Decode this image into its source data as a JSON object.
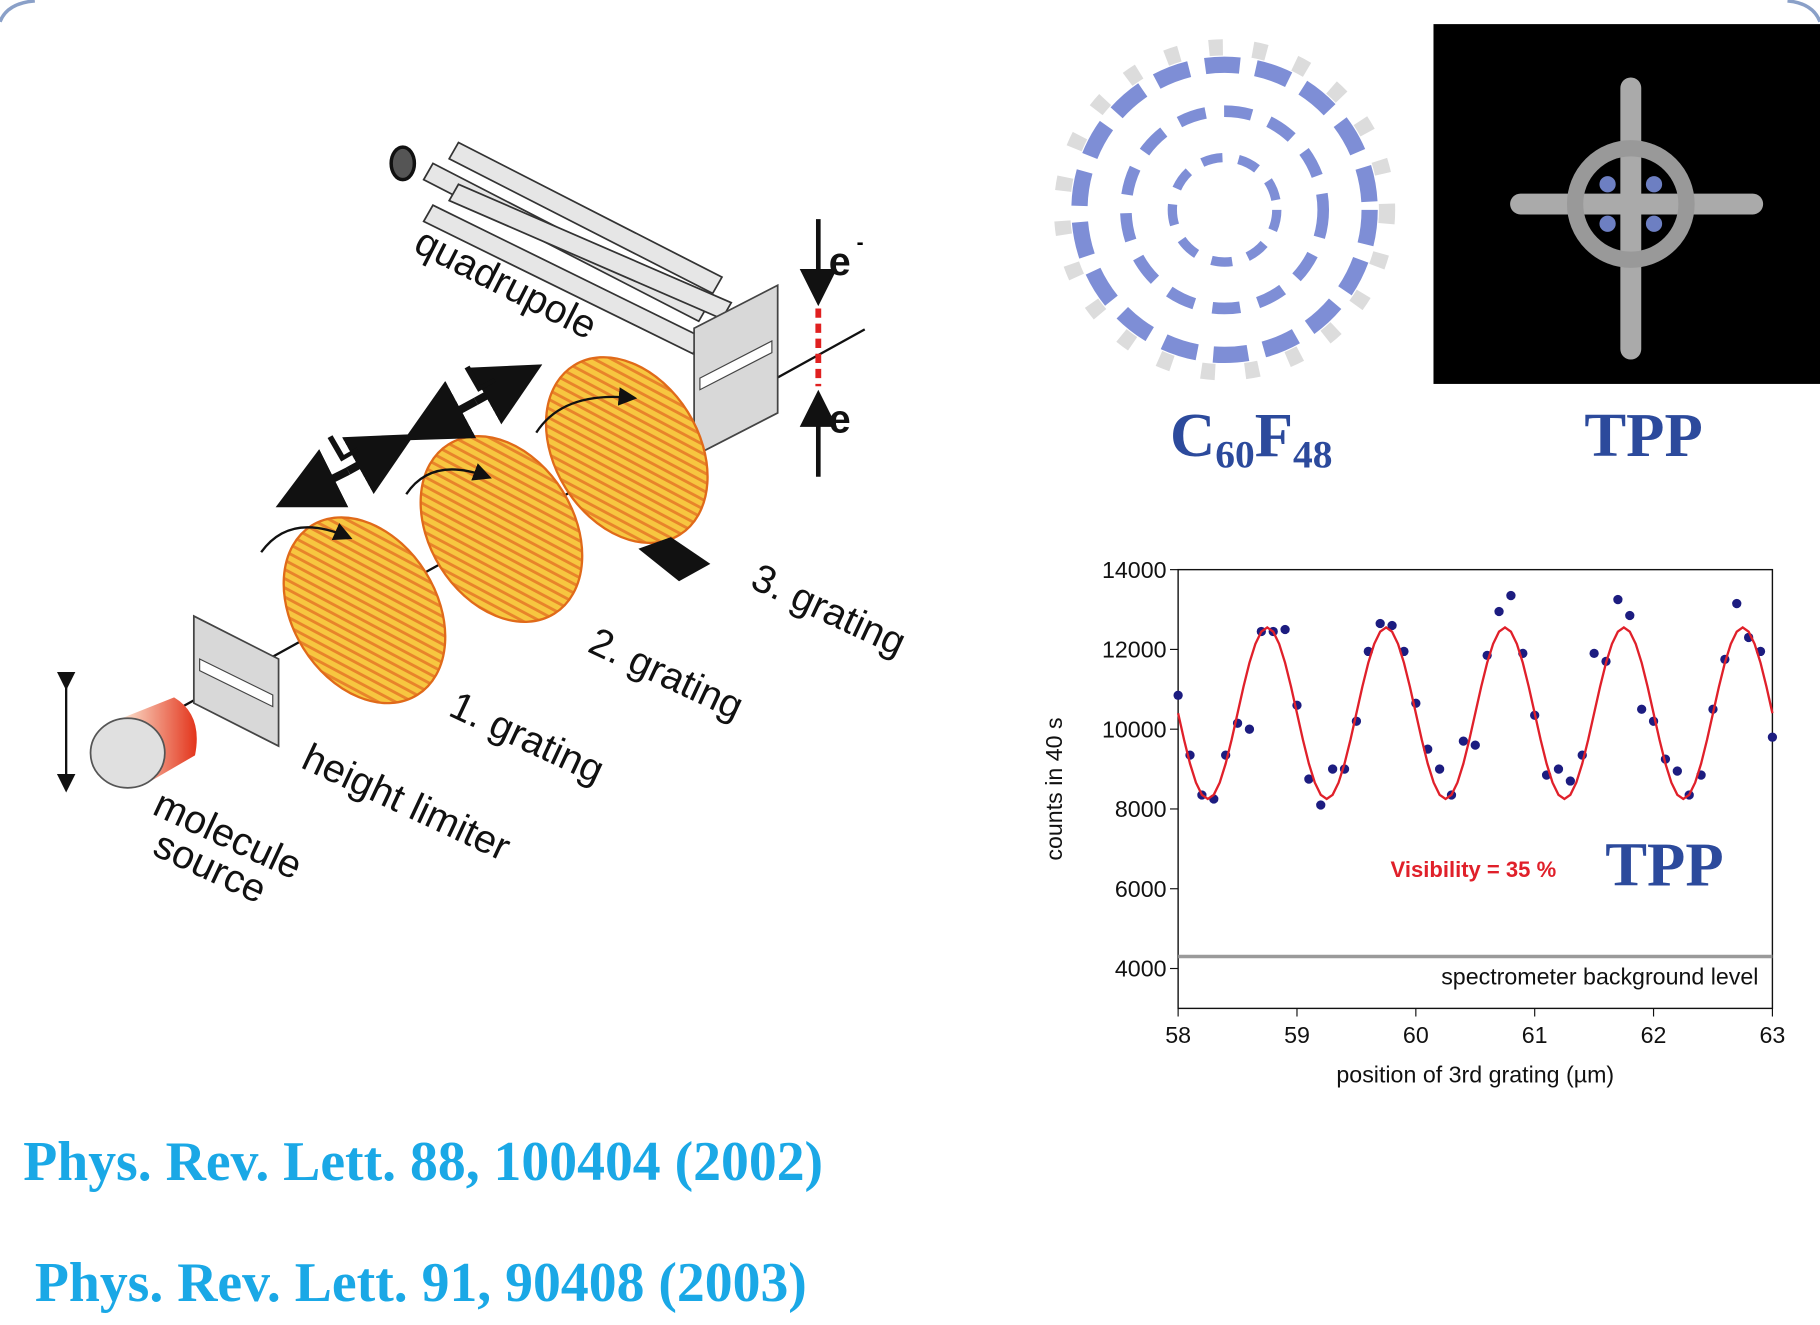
{
  "diagram": {
    "quadrupole": "quadrupole",
    "grating_3": "3. grating",
    "grating_2": "2. grating",
    "grating_1": "1. grating",
    "height_limiter": "height limiter",
    "source_line_1": "molecule",
    "source_line_2": "source",
    "distance_1": "L",
    "distance_2": "L",
    "electron_top": "e",
    "electron_bottom": "e",
    "electron_charge": "-"
  },
  "molecules": [
    {
      "label_parts": [
        "C",
        "60",
        "F",
        "48"
      ]
    },
    {
      "label": "TPP"
    }
  ],
  "chart_data": {
    "type": "scatter",
    "xlabel": "position of 3rd grating (µm)",
    "ylabel": "counts in 40 s",
    "xlim": [
      58,
      63
    ],
    "ylim": [
      3000,
      14000
    ],
    "xticks": [
      58,
      59,
      60,
      61,
      62,
      63
    ],
    "yticks": [
      4000,
      6000,
      8000,
      10000,
      12000,
      14000
    ],
    "series": [
      {
        "mode": "markers",
        "color": "#1c1c80",
        "x": [
          58,
          58.1,
          58.2,
          58.3,
          58.4,
          58.5,
          58.6,
          58.7,
          58.8,
          58.9,
          59,
          59.1,
          59.2,
          59.3,
          59.4,
          59.5,
          59.6,
          59.7,
          59.8,
          59.9,
          60,
          60.1,
          60.2,
          60.3,
          60.4,
          60.5,
          60.6,
          60.7,
          60.8,
          60.9,
          61,
          61.1,
          61.2,
          61.3,
          61.4,
          61.5,
          61.6,
          61.7,
          61.8,
          61.9,
          62,
          62.1,
          62.2,
          62.3,
          62.4,
          62.5,
          62.6,
          62.7,
          62.8,
          62.9,
          63
        ],
        "values": [
          10850,
          9350,
          8350,
          8250,
          9350,
          10150,
          10000,
          12450,
          12450,
          12500,
          10600,
          8750,
          8100,
          9000,
          9000,
          10200,
          11950,
          12650,
          12600,
          11950,
          10650,
          9500,
          9000,
          8350,
          9700,
          9600,
          11850,
          12950,
          13350,
          11900,
          10350,
          8850,
          9000,
          8700,
          9350,
          11900,
          11700,
          13250,
          12850,
          10500,
          10200,
          9250,
          8950,
          8350,
          8850,
          10500,
          11750,
          13150,
          12300,
          11950,
          9800
        ]
      },
      {
        "mode": "line",
        "color": "#e0202a",
        "x": [
          58,
          58.05,
          58.1,
          58.15,
          58.2,
          58.25,
          58.3,
          58.35,
          58.4,
          58.45,
          58.5,
          58.55,
          58.6,
          58.65,
          58.7,
          58.75,
          58.8,
          58.85,
          58.9,
          58.95,
          59,
          59.05,
          59.1,
          59.15,
          59.2,
          59.25,
          59.3,
          59.35,
          59.4,
          59.45,
          59.5,
          59.55,
          59.6,
          59.65,
          59.7,
          59.75,
          59.8,
          59.85,
          59.9,
          59.95,
          60,
          60.05,
          60.1,
          60.15,
          60.2,
          60.25,
          60.3,
          60.35,
          60.4,
          60.45,
          60.5,
          60.55,
          60.6,
          60.65,
          60.7,
          60.75,
          60.8,
          60.85,
          60.9,
          60.95,
          61,
          61.05,
          61.1,
          61.15,
          61.2,
          61.25,
          61.3,
          61.35,
          61.4,
          61.45,
          61.5,
          61.55,
          61.6,
          61.65,
          61.7,
          61.75,
          61.8,
          61.85,
          61.9,
          61.95,
          62,
          62.05,
          62.1,
          62.15,
          62.2,
          62.25,
          62.3,
          62.35,
          62.4,
          62.45,
          62.5,
          62.55,
          62.6,
          62.65,
          62.7,
          62.75,
          62.8,
          62.85,
          62.9,
          62.95,
          63
        ],
        "values": [
          10400,
          9736,
          9136,
          8661,
          8355,
          8250,
          8355,
          8661,
          9136,
          9736,
          10400,
          11064,
          11664,
          12139,
          12445,
          12550,
          12445,
          12139,
          11664,
          11064,
          10400,
          9736,
          9136,
          8661,
          8355,
          8250,
          8355,
          8661,
          9136,
          9736,
          10400,
          11064,
          11664,
          12139,
          12445,
          12550,
          12445,
          12139,
          11664,
          11064,
          10400,
          9736,
          9136,
          8661,
          8355,
          8250,
          8355,
          8661,
          9136,
          9736,
          10400,
          11064,
          11664,
          12139,
          12445,
          12550,
          12445,
          12139,
          11664,
          11064,
          10400,
          9736,
          9136,
          8661,
          8355,
          8250,
          8355,
          8661,
          9136,
          9736,
          10400,
          11064,
          11664,
          12139,
          12445,
          12550,
          12445,
          12139,
          11664,
          11064,
          10400,
          9736,
          9136,
          8661,
          8355,
          8250,
          8355,
          8661,
          9136,
          9736,
          10400,
          11064,
          11664,
          12139,
          12445,
          12550,
          12445,
          12139,
          11664,
          11064,
          10400
        ]
      }
    ],
    "hlines": [
      {
        "value": 4300,
        "color": "#9a9a9a",
        "label": "spectrometer background level"
      }
    ],
    "annotations": [
      {
        "text": "Visibility = 35 %",
        "color": "#e0202a"
      },
      {
        "text": "TPP",
        "color": "#2c4a9c"
      }
    ]
  },
  "references": [
    "Phys. Rev. Lett. 88, 100404 (2002)",
    "Phys. Rev. Lett. 91, 90408 (2003)"
  ]
}
